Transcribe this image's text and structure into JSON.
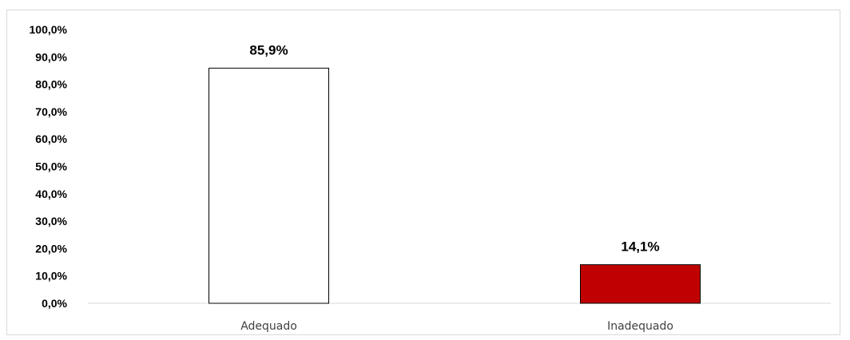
{
  "chart_data": {
    "type": "bar",
    "categories": [
      "Adequado",
      "Inadequado"
    ],
    "values": [
      85.9,
      14.1
    ],
    "data_labels": [
      "85,9%",
      "14,1%"
    ],
    "yticks": [
      "0,0%",
      "10,0%",
      "20,0%",
      "30,0%",
      "40,0%",
      "50,0%",
      "60,0%",
      "70,0%",
      "80,0%",
      "90,0%",
      "100,0%"
    ],
    "ylim": [
      0,
      100
    ],
    "grid": false,
    "legend": "none",
    "bar_fills": [
      "#ffffff",
      "#c00000"
    ],
    "bar_stroke": "#000000",
    "title": "",
    "xlabel": "",
    "ylabel": ""
  }
}
